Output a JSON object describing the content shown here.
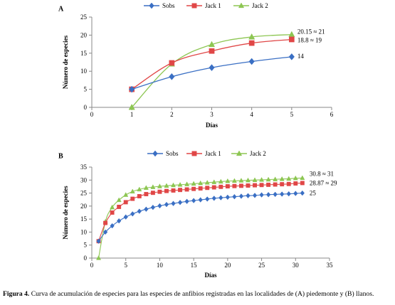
{
  "colors": {
    "sobs": "#3a6fc4",
    "jack1": "#e04747",
    "jack2": "#8dc652",
    "axis": "#888888"
  },
  "caption": {
    "label": "Figura 4.",
    "text": " Curva de acumulación de especies para las especies de anfibios registradas en las localidades de (A) piedemonte y (B) llanos."
  },
  "chart_data": [
    {
      "type": "line",
      "panel_label": "A",
      "xlabel": "Días",
      "ylabel": "Número de especies",
      "xlim": [
        0,
        6
      ],
      "ylim": [
        0,
        25
      ],
      "xticks": [
        0,
        1,
        2,
        3,
        4,
        5,
        6
      ],
      "yticks": [
        0,
        5,
        10,
        15,
        20,
        25
      ],
      "legend_position": "top-center",
      "series": [
        {
          "name": "Sobs",
          "marker": "diamond",
          "x": [
            1,
            2,
            3,
            4,
            5
          ],
          "values": [
            5,
            8.5,
            11,
            12.7,
            14
          ]
        },
        {
          "name": "Jack 1",
          "marker": "square",
          "x": [
            1,
            2,
            3,
            4,
            5
          ],
          "values": [
            5,
            12.3,
            15.6,
            17.8,
            18.8
          ]
        },
        {
          "name": "Jack 2",
          "marker": "triangle",
          "x": [
            1,
            2,
            3,
            4,
            5
          ],
          "values": [
            0,
            12,
            17.4,
            19.5,
            20.15
          ]
        }
      ],
      "annotations": [
        {
          "text": "20.15  ≈ 21",
          "x": 5,
          "y": 20.15
        },
        {
          "text": "18.8  ≈ 19",
          "x": 5,
          "y": 18.8
        },
        {
          "text": "14",
          "x": 5,
          "y": 14
        }
      ]
    },
    {
      "type": "line",
      "panel_label": "B",
      "xlabel": "Días",
      "ylabel": "Número de especies",
      "xlim": [
        0,
        35
      ],
      "ylim": [
        0,
        35
      ],
      "xticks": [
        0,
        5,
        10,
        15,
        20,
        25,
        30,
        35
      ],
      "yticks": [
        0,
        5,
        10,
        15,
        20,
        25,
        30,
        35
      ],
      "legend_position": "top-center",
      "series": [
        {
          "name": "Sobs",
          "marker": "diamond",
          "x": [
            1,
            2,
            3,
            4,
            5,
            6,
            7,
            8,
            9,
            10,
            11,
            12,
            13,
            14,
            15,
            16,
            17,
            18,
            19,
            20,
            21,
            22,
            23,
            24,
            25,
            26,
            27,
            28,
            29,
            30,
            31
          ],
          "values": [
            6.5,
            10,
            12.4,
            14.3,
            15.8,
            17,
            18,
            18.8,
            19.5,
            20.1,
            20.6,
            21,
            21.4,
            21.8,
            22.1,
            22.4,
            22.7,
            23,
            23.2,
            23.4,
            23.6,
            23.8,
            24,
            24.1,
            24.3,
            24.4,
            24.5,
            24.6,
            24.7,
            24.85,
            25
          ]
        },
        {
          "name": "Jack 1",
          "marker": "square",
          "x": [
            1,
            2,
            3,
            4,
            5,
            6,
            7,
            8,
            9,
            10,
            11,
            12,
            13,
            14,
            15,
            16,
            17,
            18,
            19,
            20,
            21,
            22,
            23,
            24,
            25,
            26,
            27,
            28,
            29,
            30,
            31
          ],
          "values": [
            6.5,
            13.5,
            17.5,
            19.7,
            21.5,
            22.8,
            23.8,
            24.6,
            25.1,
            25.5,
            25.8,
            26,
            26.2,
            26.4,
            26.6,
            26.8,
            27,
            27.2,
            27.4,
            27.6,
            27.7,
            27.8,
            27.9,
            28,
            28.1,
            28.2,
            28.3,
            28.4,
            28.5,
            28.7,
            28.87
          ]
        },
        {
          "name": "Jack 2",
          "marker": "triangle",
          "x": [
            1,
            2,
            3,
            4,
            5,
            6,
            7,
            8,
            9,
            10,
            11,
            12,
            13,
            14,
            15,
            16,
            17,
            18,
            19,
            20,
            21,
            22,
            23,
            24,
            25,
            26,
            27,
            28,
            29,
            30,
            31
          ],
          "values": [
            0,
            14,
            19.5,
            22.3,
            24.3,
            25.6,
            26.4,
            27,
            27.3,
            27.6,
            27.8,
            28,
            28.2,
            28.4,
            28.6,
            28.8,
            29,
            29.2,
            29.4,
            29.6,
            29.7,
            29.8,
            29.9,
            30,
            30.1,
            30.2,
            30.3,
            30.4,
            30.5,
            30.7,
            30.8
          ]
        }
      ],
      "annotations": [
        {
          "text": "30.8  ≈ 31",
          "x": 31,
          "y": 30.8
        },
        {
          "text": "28.87  ≈ 29",
          "x": 31,
          "y": 28.87
        },
        {
          "text": "25",
          "x": 31,
          "y": 25
        }
      ]
    }
  ]
}
